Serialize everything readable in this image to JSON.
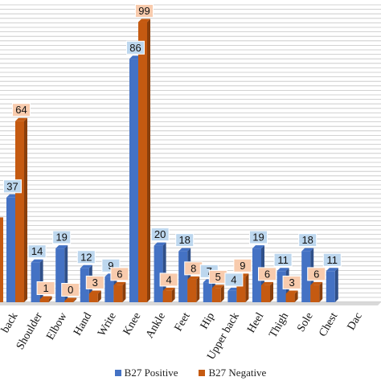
{
  "chart_data": {
    "type": "bar",
    "categories": [
      "Low back",
      "Shoulder",
      "Elbow",
      "Hand",
      "Write",
      "Knee",
      "Ankle",
      "Feet",
      "Hip",
      "Upper back",
      "Heel",
      "Thigh",
      "Sole",
      "Chest",
      "Dactylitis"
    ],
    "category_labels": [
      "back",
      "Shoulder",
      "Elbow",
      "Hand",
      "Write",
      "Knee",
      "Ankle",
      "Feet",
      "Hip",
      "Upper back",
      "Heel",
      "Thigh",
      "Sole",
      "Chest",
      "Dac"
    ],
    "series": [
      {
        "name": "B27 Positive",
        "values": [
          37,
          14,
          19,
          12,
          9,
          86,
          20,
          18,
          7,
          4,
          19,
          11,
          18,
          11,
          null
        ],
        "labels": [
          "37",
          "14",
          "19",
          "12",
          "9",
          "86",
          "20",
          "18",
          "7",
          "4",
          "19",
          "11",
          "18",
          "11",
          ""
        ],
        "color": "#4472c4",
        "label_bg": "#bdd7ee"
      },
      {
        "name": "B27 Negative",
        "values": [
          64,
          1,
          0,
          3,
          6,
          99,
          4,
          8,
          5,
          9,
          6,
          3,
          6,
          null,
          null
        ],
        "labels": [
          "64",
          "1",
          "0",
          "3",
          "6",
          "99",
          "4",
          "8",
          "5",
          "9",
          "6",
          "3",
          "6",
          "",
          ""
        ],
        "color": "#c55a11",
        "label_bg": "#f8cbad"
      }
    ],
    "ylim": [
      0,
      100
    ],
    "grid": true,
    "legend_position": "bottom"
  }
}
